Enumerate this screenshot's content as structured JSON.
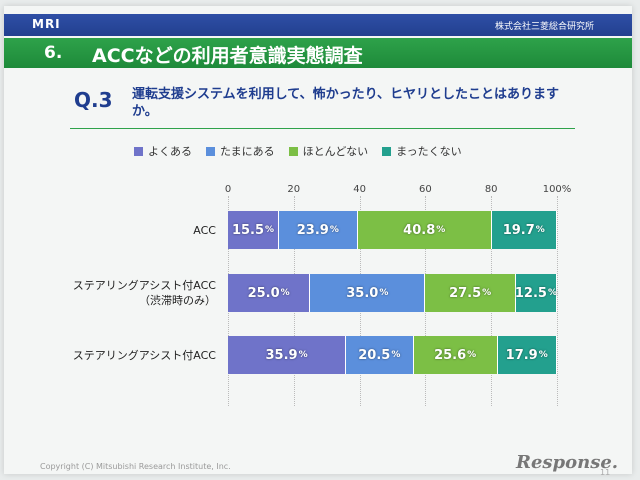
{
  "header": {
    "logo": "MRI",
    "company": "株式会社三菱総合研究所"
  },
  "slide": {
    "number": "6.",
    "title": "ACCなどの利用者意識実態調査"
  },
  "question": {
    "number": "Q.3",
    "text": "運転支援システムを利用して、怖かったり、ヒヤリとしたことはありますか。"
  },
  "footer": {
    "copyright": "Copyright (C) Mitsubishi Research Institute, Inc.",
    "brand": "Response.",
    "page": "11"
  },
  "colors": {
    "often": "#6f73c9",
    "sometimes": "#5b8fdc",
    "rarely": "#7cbf45",
    "never": "#23a08e"
  },
  "chart_data": {
    "type": "bar",
    "orientation": "horizontal",
    "stacked": true,
    "xlim": [
      0,
      100
    ],
    "ticks": [
      "0",
      "20",
      "40",
      "60",
      "80",
      "100%"
    ],
    "categories": [
      [
        "ACC"
      ],
      [
        "ステアリングアシスト付ACC",
        "（渋滞時のみ）"
      ],
      [
        "ステアリングアシスト付ACC"
      ]
    ],
    "series": [
      {
        "name": "よくある",
        "values": [
          15.5,
          25.0,
          35.9
        ]
      },
      {
        "name": "たまにある",
        "values": [
          23.9,
          35.0,
          20.5
        ]
      },
      {
        "name": "ほとんどない",
        "values": [
          40.8,
          27.5,
          25.6
        ]
      },
      {
        "name": "まったくない",
        "values": [
          19.7,
          12.5,
          17.9
        ]
      }
    ],
    "value_suffix": "%",
    "legend_position": "top"
  }
}
